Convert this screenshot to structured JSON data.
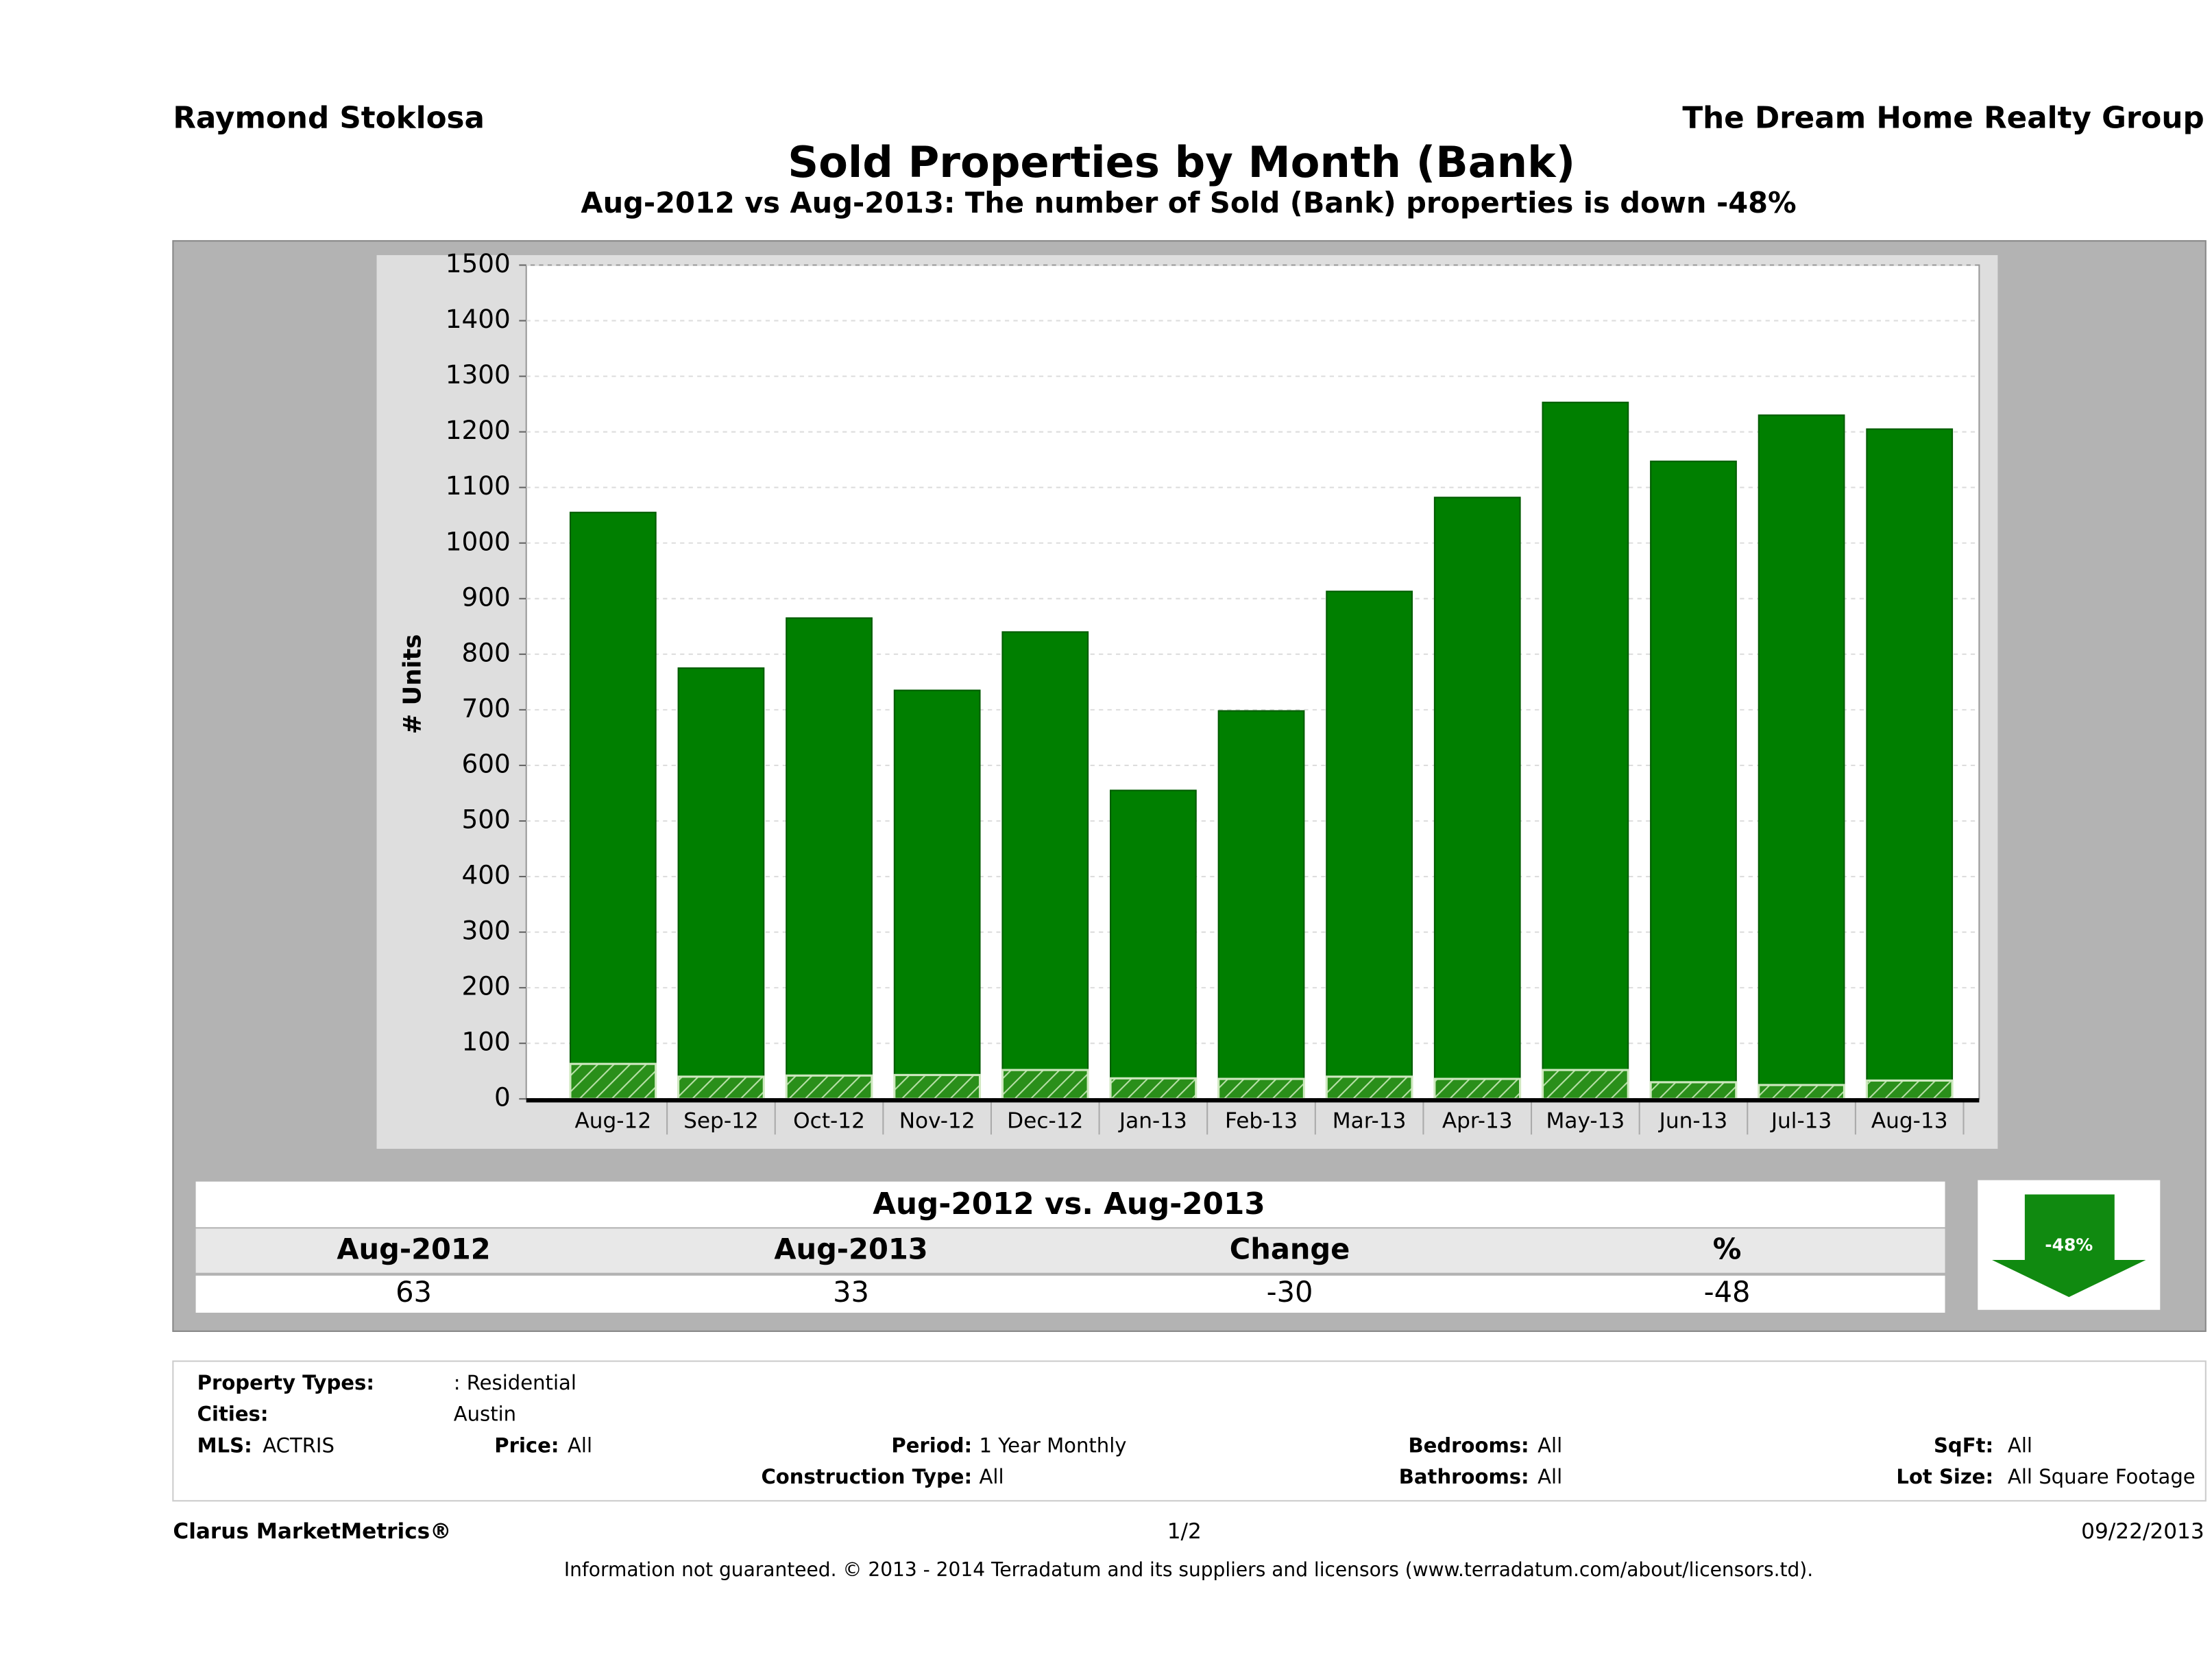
{
  "header": {
    "agent": "Raymond Stoklosa",
    "company": "The Dream Home Realty Group"
  },
  "chart_data": {
    "type": "bar",
    "title": "Sold Properties by Month (Bank)",
    "subtitle": "Aug-2012 vs Aug-2013: The number of Sold (Bank)  properties is down -48%",
    "y_label": "# Units",
    "categories": [
      "Aug-12",
      "Sep-12",
      "Oct-12",
      "Nov-12",
      "Dec-12",
      "Jan-13",
      "Feb-13",
      "Mar-13",
      "Apr-13",
      "May-13",
      "Jun-13",
      "Jul-13",
      "Aug-13"
    ],
    "series": [
      {
        "color": "#007f00",
        "values": [
          1055,
          775,
          865,
          735,
          840,
          555,
          698,
          913,
          1082,
          1253,
          1147,
          1230,
          1205
        ]
      },
      {
        "color": "#2a8f1a",
        "hatch": true,
        "values": [
          63,
          40,
          42,
          43,
          52,
          37,
          36,
          40,
          36,
          52,
          30,
          25,
          33
        ]
      }
    ],
    "ylim": [
      0,
      1500
    ],
    "yticks": [
      0,
      100,
      200,
      300,
      400,
      500,
      600,
      700,
      800,
      900,
      1000,
      1100,
      1200,
      1300,
      1400,
      1500
    ],
    "grid": true
  },
  "summary": {
    "title": "Aug-2012 vs. Aug-2013",
    "headers": [
      "Aug-2012",
      "Aug-2013",
      "Change",
      "%"
    ],
    "values": [
      63,
      33,
      -30,
      -48
    ],
    "badge": "-48%"
  },
  "details": [
    {
      "label": "Property Types:",
      "value": ": Residential"
    },
    {
      "label": "Cities:",
      "value": "Austin"
    },
    {
      "label": "MLS:",
      "value": "ACTRIS"
    },
    {
      "label": "Price:",
      "value": "All"
    },
    {
      "label": "Period:",
      "value": "1 Year Monthly"
    },
    {
      "label": "Construction Type:",
      "value": "All"
    },
    {
      "label": "Bedrooms:",
      "value": "All"
    },
    {
      "label": "Bathrooms:",
      "value": "All"
    },
    {
      "label": "SqFt:",
      "value": "All"
    },
    {
      "label": "Lot Size:",
      "value": "All Square Footage"
    }
  ],
  "footer": {
    "brand": "Clarus MarketMetrics®",
    "page": "1/2",
    "date": "09/22/2013",
    "disclaimer": "Information not guaranteed. © 2013 - 2014 Terradatum and its suppliers and licensors (www.terradatum.com/about/licensors.td)."
  }
}
